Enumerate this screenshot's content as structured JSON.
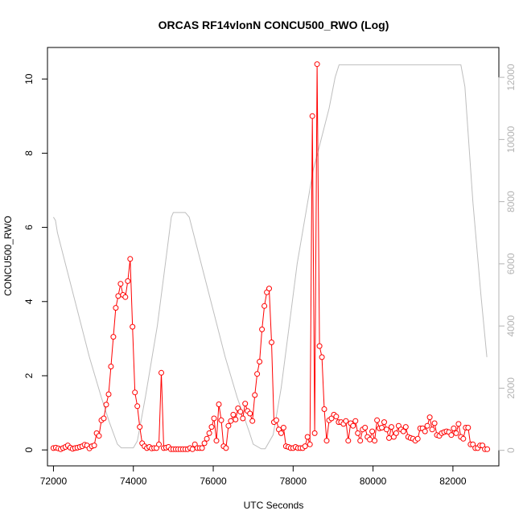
{
  "chart_data": {
    "type": "line",
    "title": "ORCAS RF14vlonN CONCU500_RWO (Log)",
    "xlabel": "UTC Seconds",
    "ylabel": "CONCU500_RWO",
    "xlim": [
      71850,
      83150
    ],
    "ylim": [
      -0.43,
      10.85
    ],
    "y2lim": [
      -500,
      12960
    ],
    "x_ticks": [
      72000,
      74000,
      76000,
      78000,
      80000,
      82000
    ],
    "y_ticks": [
      0,
      2,
      4,
      6,
      8,
      10
    ],
    "y2_ticks": [
      0,
      2000,
      4000,
      6000,
      8000,
      10000,
      12000
    ],
    "grid": false,
    "colors": {
      "primary": "#ff0000",
      "secondary": "#bebebe",
      "axis": "#000000",
      "right_axis": "#b3b3b3"
    },
    "series": [
      {
        "axis": "left",
        "style": "points-and-lines",
        "color": "#ff0000",
        "points": [
          [
            72000,
            0.05
          ],
          [
            72060,
            0.06
          ],
          [
            72120,
            0.04
          ],
          [
            72180,
            0.02
          ],
          [
            72240,
            0.05
          ],
          [
            72300,
            0.08
          ],
          [
            72360,
            0.12
          ],
          [
            72420,
            0.06
          ],
          [
            72480,
            0.03
          ],
          [
            72540,
            0.05
          ],
          [
            72600,
            0.06
          ],
          [
            72660,
            0.08
          ],
          [
            72720,
            0.1
          ],
          [
            72780,
            0.14
          ],
          [
            72840,
            0.12
          ],
          [
            72900,
            0.04
          ],
          [
            72960,
            0.1
          ],
          [
            73020,
            0.12
          ],
          [
            73080,
            0.45
          ],
          [
            73140,
            0.38
          ],
          [
            73200,
            0.8
          ],
          [
            73260,
            0.85
          ],
          [
            73320,
            1.22
          ],
          [
            73380,
            1.5
          ],
          [
            73440,
            2.25
          ],
          [
            73500,
            3.05
          ],
          [
            73560,
            3.83
          ],
          [
            73620,
            4.15
          ],
          [
            73680,
            4.48
          ],
          [
            73740,
            4.18
          ],
          [
            73800,
            4.12
          ],
          [
            73860,
            4.55
          ],
          [
            73920,
            5.15
          ],
          [
            73980,
            3.32
          ],
          [
            74040,
            1.55
          ],
          [
            74100,
            1.18
          ],
          [
            74160,
            0.62
          ],
          [
            74220,
            0.18
          ],
          [
            74280,
            0.1
          ],
          [
            74340,
            0.05
          ],
          [
            74400,
            0.08
          ],
          [
            74460,
            0.04
          ],
          [
            74520,
            0.05
          ],
          [
            74580,
            0.05
          ],
          [
            74640,
            0.15
          ],
          [
            74700,
            2.08
          ],
          [
            74760,
            0.05
          ],
          [
            74820,
            0.06
          ],
          [
            74880,
            0.08
          ],
          [
            74940,
            0.02
          ],
          [
            75000,
            0.02
          ],
          [
            75060,
            0.02
          ],
          [
            75120,
            0.02
          ],
          [
            75180,
            0.02
          ],
          [
            75240,
            0.02
          ],
          [
            75300,
            0.02
          ],
          [
            75360,
            0.02
          ],
          [
            75420,
            0.05
          ],
          [
            75480,
            0.02
          ],
          [
            75540,
            0.15
          ],
          [
            75600,
            0.05
          ],
          [
            75660,
            0.05
          ],
          [
            75720,
            0.05
          ],
          [
            75780,
            0.18
          ],
          [
            75840,
            0.3
          ],
          [
            75900,
            0.45
          ],
          [
            75960,
            0.62
          ],
          [
            76020,
            0.85
          ],
          [
            76080,
            0.25
          ],
          [
            76140,
            1.23
          ],
          [
            76200,
            0.8
          ],
          [
            76260,
            0.1
          ],
          [
            76320,
            0.05
          ],
          [
            76380,
            0.65
          ],
          [
            76440,
            0.78
          ],
          [
            76500,
            0.95
          ],
          [
            76560,
            0.82
          ],
          [
            76620,
            1.12
          ],
          [
            76680,
            1.03
          ],
          [
            76740,
            0.85
          ],
          [
            76800,
            1.25
          ],
          [
            76860,
            1.05
          ],
          [
            76920,
            0.98
          ],
          [
            76980,
            0.78
          ],
          [
            77040,
            1.48
          ],
          [
            77100,
            2.05
          ],
          [
            77160,
            2.38
          ],
          [
            77220,
            3.25
          ],
          [
            77280,
            3.88
          ],
          [
            77340,
            4.25
          ],
          [
            77400,
            4.35
          ],
          [
            77460,
            2.9
          ],
          [
            77520,
            0.75
          ],
          [
            77580,
            0.8
          ],
          [
            77640,
            0.55
          ],
          [
            77700,
            0.45
          ],
          [
            77760,
            0.6
          ],
          [
            77820,
            0.1
          ],
          [
            77880,
            0.08
          ],
          [
            77940,
            0.05
          ],
          [
            78000,
            0.05
          ],
          [
            78060,
            0.08
          ],
          [
            78120,
            0.05
          ],
          [
            78180,
            0.05
          ],
          [
            78240,
            0.05
          ],
          [
            78300,
            0.1
          ],
          [
            78360,
            0.35
          ],
          [
            78420,
            0.15
          ],
          [
            78480,
            9.0
          ],
          [
            78540,
            0.45
          ],
          [
            78600,
            10.4
          ],
          [
            78660,
            2.8
          ],
          [
            78720,
            2.5
          ],
          [
            78780,
            1.1
          ],
          [
            78840,
            0.25
          ],
          [
            78900,
            0.8
          ],
          [
            78960,
            0.85
          ],
          [
            79020,
            0.95
          ],
          [
            79080,
            0.9
          ],
          [
            79140,
            0.75
          ],
          [
            79200,
            0.75
          ],
          [
            79260,
            0.7
          ],
          [
            79320,
            0.78
          ],
          [
            79380,
            0.25
          ],
          [
            79440,
            0.72
          ],
          [
            79500,
            0.65
          ],
          [
            79560,
            0.78
          ],
          [
            79620,
            0.45
          ],
          [
            79680,
            0.25
          ],
          [
            79740,
            0.55
          ],
          [
            79800,
            0.6
          ],
          [
            79860,
            0.35
          ],
          [
            79920,
            0.28
          ],
          [
            79980,
            0.5
          ],
          [
            80040,
            0.25
          ],
          [
            80100,
            0.8
          ],
          [
            80160,
            0.58
          ],
          [
            80220,
            0.6
          ],
          [
            80280,
            0.75
          ],
          [
            80340,
            0.55
          ],
          [
            80400,
            0.32
          ],
          [
            80460,
            0.62
          ],
          [
            80520,
            0.35
          ],
          [
            80580,
            0.45
          ],
          [
            80640,
            0.65
          ],
          [
            80700,
            0.55
          ],
          [
            80760,
            0.5
          ],
          [
            80820,
            0.62
          ],
          [
            80880,
            0.35
          ],
          [
            80940,
            0.32
          ],
          [
            81000,
            0.3
          ],
          [
            81060,
            0.25
          ],
          [
            81120,
            0.3
          ],
          [
            81180,
            0.58
          ],
          [
            81240,
            0.58
          ],
          [
            81300,
            0.5
          ],
          [
            81360,
            0.65
          ],
          [
            81420,
            0.88
          ],
          [
            81480,
            0.55
          ],
          [
            81540,
            0.72
          ],
          [
            81600,
            0.4
          ],
          [
            81660,
            0.38
          ],
          [
            81720,
            0.45
          ],
          [
            81780,
            0.48
          ],
          [
            81840,
            0.5
          ],
          [
            81900,
            0.48
          ],
          [
            81960,
            0.4
          ],
          [
            82020,
            0.58
          ],
          [
            82080,
            0.45
          ],
          [
            82140,
            0.7
          ],
          [
            82200,
            0.35
          ],
          [
            82260,
            0.3
          ],
          [
            82320,
            0.6
          ],
          [
            82380,
            0.6
          ],
          [
            82440,
            0.15
          ],
          [
            82500,
            0.15
          ],
          [
            82560,
            0.05
          ],
          [
            82620,
            0.05
          ],
          [
            82680,
            0.12
          ],
          [
            82740,
            0.12
          ],
          [
            82800,
            0.02
          ],
          [
            82860,
            0.02
          ]
        ]
      },
      {
        "axis": "right",
        "style": "line",
        "color": "#bebebe",
        "points": [
          [
            72000,
            7500
          ],
          [
            72050,
            7400
          ],
          [
            72100,
            7000
          ],
          [
            72300,
            6000
          ],
          [
            72600,
            4500
          ],
          [
            72900,
            3000
          ],
          [
            73200,
            1700
          ],
          [
            73400,
            900
          ],
          [
            73600,
            200
          ],
          [
            73700,
            80
          ],
          [
            74000,
            80
          ],
          [
            74100,
            300
          ],
          [
            74300,
            1700
          ],
          [
            74600,
            4000
          ],
          [
            74800,
            6000
          ],
          [
            74950,
            7500
          ],
          [
            75000,
            7650
          ],
          [
            75300,
            7650
          ],
          [
            75400,
            7500
          ],
          [
            75700,
            6000
          ],
          [
            76000,
            4500
          ],
          [
            76300,
            3000
          ],
          [
            76600,
            1700
          ],
          [
            76900,
            600
          ],
          [
            77000,
            200
          ],
          [
            77200,
            50
          ],
          [
            77300,
            50
          ],
          [
            77500,
            500
          ],
          [
            77700,
            2000
          ],
          [
            77900,
            4000
          ],
          [
            78100,
            6000
          ],
          [
            78300,
            7500
          ],
          [
            78500,
            9000
          ],
          [
            78700,
            10000
          ],
          [
            78900,
            11000
          ],
          [
            79050,
            12000
          ],
          [
            79150,
            12400
          ],
          [
            82200,
            12400
          ],
          [
            82300,
            11700
          ],
          [
            82500,
            8000
          ],
          [
            82700,
            5000
          ],
          [
            82850,
            3000
          ]
        ]
      }
    ]
  }
}
